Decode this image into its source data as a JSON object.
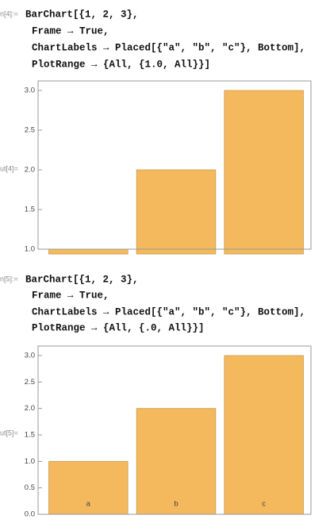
{
  "cells": [
    {
      "in_label": "n[4]:=",
      "code": [
        "BarChart[{1, 2, 3},",
        "Frame → True,",
        "ChartLabels → Placed[{\"a\", \"b\", \"c\"}, Bottom],",
        "PlotRange → {All, {1.0, All}}]"
      ],
      "out_label": "ut[4]="
    },
    {
      "in_label": "n[5]:=",
      "code": [
        "BarChart[{1, 2, 3},",
        "Frame → True,",
        "ChartLabels → Placed[{\"a\", \"b\", \"c\"}, Bottom],",
        "PlotRange → {All, {.0, All}}]"
      ],
      "out_label": "ut[5]="
    }
  ],
  "chart_data": [
    {
      "type": "bar",
      "values": [
        1,
        2,
        3
      ],
      "color": "#f4b95c",
      "ylim": [
        1.0,
        3.12
      ],
      "yticks": [
        {
          "value": 1,
          "label": "1.0"
        },
        {
          "value": 1.5,
          "label": "1.5"
        },
        {
          "value": 2,
          "label": "2.0"
        },
        {
          "value": 2.5,
          "label": "2.5"
        },
        {
          "value": 3,
          "label": "3.0"
        }
      ]
    },
    {
      "type": "bar",
      "categories": [
        "a",
        "b",
        "c"
      ],
      "values": [
        1,
        2,
        3
      ],
      "color": "#f4b95c",
      "ylim": [
        0,
        3.18
      ],
      "yticks": [
        {
          "value": 0,
          "label": "0.0"
        },
        {
          "value": 0.5,
          "label": "0.5"
        },
        {
          "value": 1,
          "label": "1.0"
        },
        {
          "value": 1.5,
          "label": "1.5"
        },
        {
          "value": 2,
          "label": "2.0"
        },
        {
          "value": 2.5,
          "label": "2.5"
        },
        {
          "value": 3,
          "label": "3.0"
        }
      ]
    }
  ]
}
